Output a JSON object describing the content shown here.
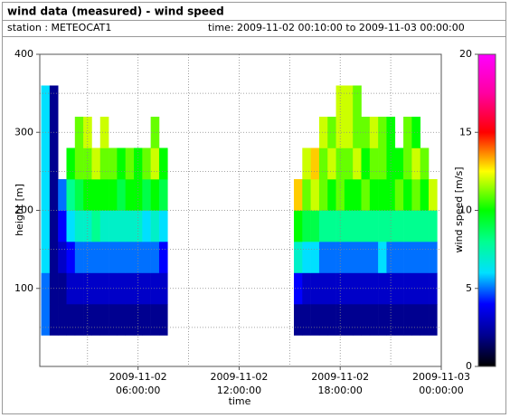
{
  "chart_data": {
    "type": "heatmap",
    "title": "wind data (measured) - wind speed",
    "station": "station : METEOCAT1",
    "time_range": "time: 2009-11-02 00:10:00 to 2009-11-03 00:00:00",
    "xlabel": "time",
    "ylabel": "height [m]",
    "colorbar_label": "wind speed [m/s]",
    "xlim": [
      0.1667,
      24
    ],
    "xticks": [
      {
        "value": 6,
        "label": "2009-11-02\n06:00:00"
      },
      {
        "value": 12,
        "label": "2009-11-02\n12:00:00"
      },
      {
        "value": 18,
        "label": "2009-11-02\n18:00:00"
      },
      {
        "value": 24,
        "label": "2009-11-03\n00:00:00"
      }
    ],
    "minor_xticks": [
      3,
      9,
      15,
      21
    ],
    "ylim": [
      0,
      400
    ],
    "yticks": [
      100,
      200,
      300,
      400
    ],
    "minor_yticks": [
      50,
      150,
      250,
      350
    ],
    "zlim": [
      0,
      20
    ],
    "zticks": [
      0,
      5,
      10,
      15,
      20
    ],
    "colorscale": [
      [
        0,
        "#000000"
      ],
      [
        2,
        "#000090"
      ],
      [
        4,
        "#0000ff"
      ],
      [
        6,
        "#00e0ff"
      ],
      [
        8,
        "#00ff90"
      ],
      [
        10,
        "#00ff00"
      ],
      [
        12.5,
        "#ffff00"
      ],
      [
        15,
        "#ff0000"
      ],
      [
        17.5,
        "#ff00a0"
      ],
      [
        20,
        "#ff00ff"
      ]
    ],
    "grid": true,
    "x_width": 0.5,
    "y_width": 40,
    "x": [
      0.5,
      1,
      1.5,
      2,
      2.5,
      3,
      3.5,
      4,
      4.5,
      5,
      5.5,
      6,
      6.5,
      7,
      7.5,
      15.5,
      16,
      16.5,
      17,
      17.5,
      18,
      18.5,
      19,
      19.5,
      20,
      20.5,
      21,
      21.5,
      22,
      22.5,
      23,
      23.5
    ],
    "y": [
      60,
      100,
      140,
      180,
      220,
      260,
      300,
      340
    ],
    "z": [
      [
        5,
        2,
        2,
        2,
        2,
        2,
        2,
        2,
        2,
        2,
        2,
        2,
        2,
        2,
        2,
        2,
        2,
        2,
        2,
        2,
        2,
        2,
        2,
        2,
        2,
        2,
        2,
        2,
        2,
        2,
        2,
        2
      ],
      [
        5,
        2,
        2,
        3,
        3,
        3,
        3,
        3,
        3,
        3,
        3,
        3,
        3,
        3,
        3,
        4,
        3,
        3,
        3,
        3,
        3,
        3,
        3,
        3,
        3,
        3,
        3,
        3,
        3,
        3,
        3,
        3
      ],
      [
        6,
        2,
        3,
        4,
        5,
        5,
        5,
        5,
        5,
        5,
        5,
        5,
        5,
        5,
        4,
        7,
        6,
        6,
        5,
        5,
        5,
        5,
        5,
        5,
        5,
        6,
        5,
        5,
        5,
        5,
        5,
        5
      ],
      [
        6,
        2,
        4,
        6,
        7,
        7,
        8,
        7,
        7,
        7,
        7,
        7,
        6,
        7,
        6,
        10,
        9,
        9,
        8,
        8,
        8,
        8,
        8,
        8,
        8,
        8,
        8,
        8,
        8,
        8,
        8,
        8
      ],
      [
        6,
        2,
        5,
        8,
        9,
        10,
        10,
        10,
        10,
        9,
        10,
        10,
        9,
        10,
        9,
        13,
        11,
        12,
        11,
        10,
        11,
        10,
        10,
        11,
        10,
        10,
        10,
        11,
        10,
        11,
        10,
        12
      ],
      [
        6,
        2,
        null,
        10,
        11,
        11,
        12,
        11,
        11,
        10,
        11,
        10,
        11,
        12,
        10,
        null,
        12,
        13,
        11,
        12,
        11,
        11,
        12,
        10,
        11,
        11,
        10,
        10,
        11,
        12,
        11,
        null
      ],
      [
        6,
        2,
        null,
        null,
        11,
        12,
        null,
        12,
        null,
        null,
        null,
        null,
        null,
        11,
        null,
        null,
        null,
        null,
        12,
        11,
        12,
        12,
        11,
        11,
        12,
        11,
        10,
        null,
        11,
        10,
        null,
        null
      ],
      [
        6,
        2,
        null,
        null,
        null,
        null,
        null,
        null,
        null,
        null,
        null,
        null,
        null,
        null,
        null,
        null,
        null,
        null,
        null,
        null,
        12,
        12,
        11,
        null,
        null,
        null,
        null,
        null,
        null,
        null,
        null,
        null
      ]
    ]
  }
}
